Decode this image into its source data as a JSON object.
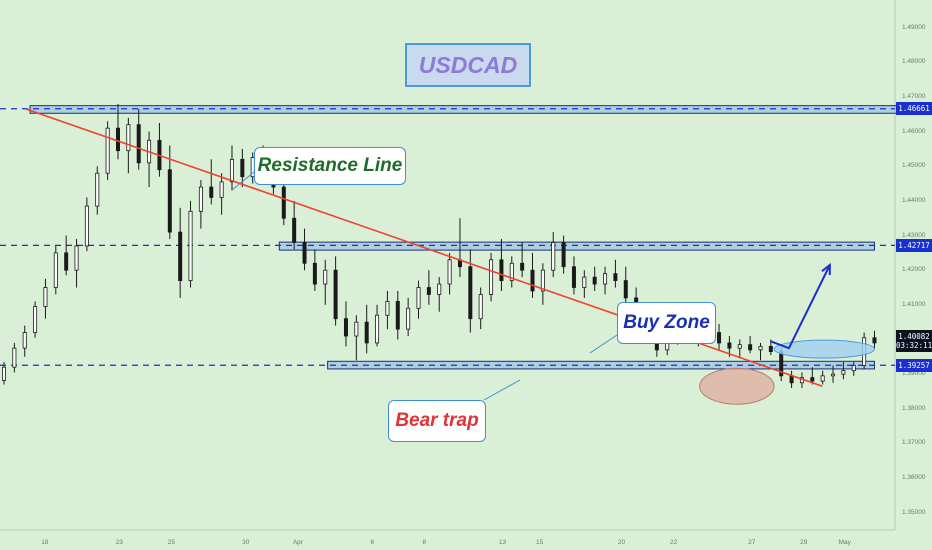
{
  "chart_data": {
    "type": "candlestick",
    "title": "USDCAD",
    "x_tick_labels": [
      "18",
      "23",
      "25",
      "30",
      "Apr",
      "6",
      "8",
      "13",
      "15",
      "20",
      "22",
      "27",
      "29",
      "May"
    ],
    "y_tick_labels": [
      "1.49000",
      "1.48000",
      "1.47000",
      "1.46000",
      "1.45000",
      "1.44000",
      "1.43000",
      "1.42000",
      "1.41000",
      "1.40000",
      "1.39000",
      "1.38000",
      "1.37000",
      "1.36000",
      "1.35000"
    ],
    "ylim": [
      1.345,
      1.498
    ],
    "price_labels": [
      {
        "text": "1.46661",
        "value": 1.46661,
        "style": "blue"
      },
      {
        "text": "1.42717",
        "value": 1.42717,
        "style": "blue"
      },
      {
        "text": "1.40082",
        "value": 1.40082,
        "style": "dark"
      },
      {
        "text": "03:32:11",
        "value": 1.3984,
        "style": "dark"
      },
      {
        "text": "1.39257",
        "value": 1.39257,
        "style": "blue"
      }
    ],
    "horizontal_levels": [
      1.46661,
      1.42717,
      1.39257
    ],
    "zones": [
      {
        "x_start_index": 7,
        "x_end_index": 261,
        "low": 1.4653,
        "high": 1.4675
      },
      {
        "x_start_index": 74,
        "x_end_index": 234,
        "low": 1.4258,
        "high": 1.4281
      },
      {
        "x_start_index": 87,
        "x_end_index": 234,
        "low": 1.3915,
        "high": 1.3937
      }
    ],
    "resistance_line": {
      "start": {
        "index": 6,
        "value": 1.4665
      },
      "end": {
        "index": 220,
        "value": 1.3865
      }
    },
    "bear_trap_ellipse": {
      "x_start_index": 187,
      "x_end_index": 207,
      "value_center": 1.3865
    },
    "buy_zone_ellipse": {
      "x_start_index": 207,
      "x_end_index": 234,
      "value_center": 1.3972
    },
    "projection_arrow": [
      {
        "index": 206,
        "value": 1.3995
      },
      {
        "index": 211,
        "value": 1.3975
      },
      {
        "index": 222,
        "value": 1.4215
      }
    ],
    "annotations": [
      "Resistance Line",
      "Buy Zone",
      "Bear trap"
    ],
    "candle_values": [
      [
        1.3882,
        1.3935,
        1.387,
        1.392
      ],
      [
        1.392,
        1.399,
        1.3905,
        1.3975
      ],
      [
        1.3975,
        1.404,
        1.395,
        1.402
      ],
      [
        1.402,
        1.411,
        1.4005,
        1.4095
      ],
      [
        1.4095,
        1.4175,
        1.406,
        1.415
      ],
      [
        1.415,
        1.427,
        1.413,
        1.425
      ],
      [
        1.425,
        1.43,
        1.4185,
        1.42
      ],
      [
        1.42,
        1.429,
        1.415,
        1.427
      ],
      [
        1.427,
        1.441,
        1.4255,
        1.4385
      ],
      [
        1.4385,
        1.45,
        1.436,
        1.448
      ],
      [
        1.448,
        1.463,
        1.446,
        1.461
      ],
      [
        1.461,
        1.468,
        1.452,
        1.4545
      ],
      [
        1.4545,
        1.464,
        1.448,
        1.462
      ],
      [
        1.462,
        1.4665,
        1.449,
        1.451
      ],
      [
        1.451,
        1.46,
        1.444,
        1.4575
      ],
      [
        1.4575,
        1.4625,
        1.447,
        1.449
      ],
      [
        1.449,
        1.456,
        1.429,
        1.431
      ],
      [
        1.431,
        1.438,
        1.412,
        1.417
      ],
      [
        1.417,
        1.44,
        1.415,
        1.437
      ],
      [
        1.437,
        1.446,
        1.432,
        1.444
      ],
      [
        1.444,
        1.452,
        1.439,
        1.441
      ],
      [
        1.441,
        1.448,
        1.436,
        1.4455
      ],
      [
        1.4455,
        1.456,
        1.443,
        1.452
      ],
      [
        1.452,
        1.455,
        1.444,
        1.447
      ],
      [
        1.447,
        1.454,
        1.445,
        1.4525
      ],
      [
        1.4525,
        1.456,
        1.448,
        1.4495
      ],
      [
        1.4495,
        1.453,
        1.442,
        1.444
      ],
      [
        1.444,
        1.447,
        1.433,
        1.435
      ],
      [
        1.435,
        1.44,
        1.426,
        1.428
      ],
      [
        1.428,
        1.432,
        1.42,
        1.422
      ],
      [
        1.422,
        1.426,
        1.414,
        1.416
      ],
      [
        1.416,
        1.423,
        1.41,
        1.42
      ],
      [
        1.42,
        1.424,
        1.404,
        1.406
      ],
      [
        1.406,
        1.411,
        1.398,
        1.401
      ],
      [
        1.401,
        1.407,
        1.394,
        1.405
      ],
      [
        1.405,
        1.41,
        1.396,
        1.399
      ],
      [
        1.399,
        1.41,
        1.398,
        1.407
      ],
      [
        1.407,
        1.414,
        1.403,
        1.411
      ],
      [
        1.411,
        1.414,
        1.4,
        1.403
      ],
      [
        1.403,
        1.412,
        1.401,
        1.409
      ],
      [
        1.409,
        1.417,
        1.406,
        1.415
      ],
      [
        1.415,
        1.42,
        1.41,
        1.413
      ],
      [
        1.413,
        1.418,
        1.408,
        1.416
      ],
      [
        1.416,
        1.425,
        1.413,
        1.423
      ],
      [
        1.423,
        1.435,
        1.418,
        1.421
      ],
      [
        1.421,
        1.426,
        1.402,
        1.406
      ],
      [
        1.406,
        1.415,
        1.403,
        1.413
      ],
      [
        1.413,
        1.425,
        1.411,
        1.423
      ],
      [
        1.423,
        1.429,
        1.414,
        1.417
      ],
      [
        1.417,
        1.424,
        1.415,
        1.422
      ],
      [
        1.422,
        1.428,
        1.418,
        1.42
      ],
      [
        1.42,
        1.425,
        1.412,
        1.414
      ],
      [
        1.414,
        1.422,
        1.41,
        1.42
      ],
      [
        1.42,
        1.431,
        1.418,
        1.428
      ],
      [
        1.428,
        1.43,
        1.419,
        1.421
      ],
      [
        1.421,
        1.424,
        1.413,
        1.415
      ],
      [
        1.415,
        1.42,
        1.412,
        1.418
      ],
      [
        1.418,
        1.421,
        1.414,
        1.416
      ],
      [
        1.416,
        1.421,
        1.413,
        1.419
      ],
      [
        1.419,
        1.423,
        1.415,
        1.417
      ],
      [
        1.417,
        1.421,
        1.41,
        1.412
      ],
      [
        1.412,
        1.415,
        1.404,
        1.406
      ],
      [
        1.406,
        1.409,
        1.399,
        1.401
      ],
      [
        1.401,
        1.404,
        1.395,
        1.397
      ],
      [
        1.397,
        1.402,
        1.3955,
        1.4
      ],
      [
        1.4,
        1.405,
        1.3985,
        1.403
      ],
      [
        1.403,
        1.406,
        1.399,
        1.401
      ],
      [
        1.401,
        1.405,
        1.398,
        1.404
      ],
      [
        1.404,
        1.408,
        1.4,
        1.402
      ],
      [
        1.402,
        1.4045,
        1.397,
        1.399
      ],
      [
        1.399,
        1.401,
        1.395,
        1.3975
      ],
      [
        1.3975,
        1.4,
        1.3945,
        1.3985
      ],
      [
        1.3985,
        1.401,
        1.396,
        1.397
      ],
      [
        1.397,
        1.399,
        1.394,
        1.398
      ],
      [
        1.398,
        1.4,
        1.3955,
        1.3965
      ],
      [
        1.3965,
        1.3975,
        1.388,
        1.3895
      ],
      [
        1.3895,
        1.391,
        1.386,
        1.3875
      ],
      [
        1.3875,
        1.3905,
        1.386,
        1.389
      ],
      [
        1.389,
        1.392,
        1.387,
        1.388
      ],
      [
        1.388,
        1.391,
        1.387,
        1.3895
      ],
      [
        1.3895,
        1.3925,
        1.3875,
        1.39
      ],
      [
        1.39,
        1.3935,
        1.3885,
        1.391
      ],
      [
        1.391,
        1.3935,
        1.3895,
        1.3925
      ],
      [
        1.3925,
        1.402,
        1.3915,
        1.4005
      ],
      [
        1.4005,
        1.4025,
        1.3975,
        1.399
      ]
    ]
  }
}
